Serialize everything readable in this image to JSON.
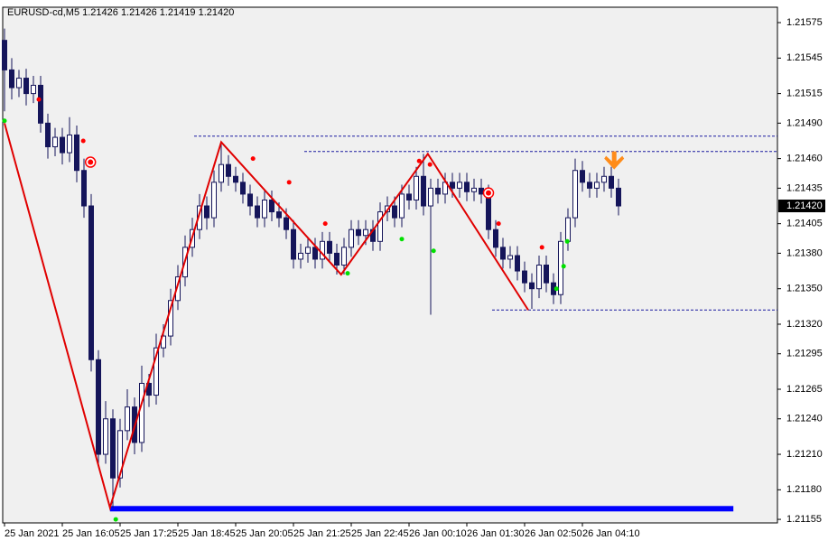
{
  "chart_data": {
    "type": "candlestick",
    "title": "EURUSD-cd,M5  1.21426 1.21426 1.21419 1.21420",
    "bull_color": "#ffffff",
    "bear_color": "#15155a",
    "outline_color": "#15155a",
    "ylim": [
      1.21152,
      1.21588
    ],
    "yticks": [
      1.21575,
      1.21545,
      1.21515,
      {
        "value": 1.2149,
        "label": "1.21490"
      },
      {
        "value": 1.2146,
        "label": "1.21460"
      },
      1.21435,
      1.21405,
      {
        "value": 1.2138,
        "label": "1.21380"
      },
      {
        "value": 1.2135,
        "label": "1.21350"
      },
      {
        "value": 1.2132,
        "label": "1.21320"
      },
      1.21295,
      1.21265,
      {
        "value": 1.2124,
        "label": "1.21240"
      },
      {
        "value": 1.2121,
        "label": "1.21210"
      },
      {
        "value": 1.2118,
        "label": "1.21180"
      },
      1.21155
    ],
    "xlim": [
      -0.25,
      107
    ],
    "xticks": [
      {
        "value": 0,
        "label": "25 Jan 2021"
      },
      {
        "value": 8,
        "label": "25 Jan 16:05"
      },
      {
        "value": 16,
        "label": "25 Jan 17:25"
      },
      {
        "value": 24,
        "label": "25 Jan 18:45"
      },
      {
        "value": 32,
        "label": "25 Jan 20:05"
      },
      {
        "value": 40,
        "label": "25 Jan 21:25"
      },
      {
        "value": 48,
        "label": "25 Jan 22:45"
      },
      {
        "value": 56,
        "label": "26 Jan 00:10"
      },
      {
        "value": 64,
        "label": "26 Jan 01:30"
      },
      {
        "value": 72,
        "label": "26 Jan 02:50"
      },
      {
        "value": 80,
        "label": "26 Jan 04:10"
      }
    ],
    "last_price": {
      "value": 1.2142,
      "label": "1.21420"
    },
    "ohlc": [
      [
        1.2156,
        1.2157,
        1.215,
        1.21535
      ],
      [
        1.21535,
        1.21545,
        1.2151,
        1.2152
      ],
      [
        1.2152,
        1.21535,
        1.21512,
        1.21528
      ],
      [
        1.21528,
        1.21536,
        1.21505,
        1.21515
      ],
      [
        1.21515,
        1.2153,
        1.21507,
        1.21522
      ],
      [
        1.21522,
        1.2153,
        1.21482,
        1.2149
      ],
      [
        1.2149,
        1.21498,
        1.2146,
        1.2147
      ],
      [
        1.2147,
        1.21486,
        1.21462,
        1.21478
      ],
      [
        1.21478,
        1.21486,
        1.21455,
        1.21465
      ],
      [
        1.21465,
        1.21495,
        1.21457,
        1.2148
      ],
      [
        1.2148,
        1.21488,
        1.2144,
        1.2145
      ],
      [
        1.2145,
        1.2146,
        1.2141,
        1.2142
      ],
      [
        1.2142,
        1.2143,
        1.2128,
        1.2129
      ],
      [
        1.2129,
        1.21298,
        1.212,
        1.2121
      ],
      [
        1.2121,
        1.21255,
        1.21202,
        1.2124
      ],
      [
        1.2124,
        1.21248,
        1.21165,
        1.2119
      ],
      [
        1.2119,
        1.2124,
        1.21182,
        1.2123
      ],
      [
        1.2123,
        1.21265,
        1.21222,
        1.2125
      ],
      [
        1.2125,
        1.21258,
        1.2121,
        1.2122
      ],
      [
        1.2122,
        1.21285,
        1.21212,
        1.2127
      ],
      [
        1.2127,
        1.21278,
        1.2125,
        1.2126
      ],
      [
        1.2126,
        1.21312,
        1.21252,
        1.213
      ],
      [
        1.213,
        1.2132,
        1.21292,
        1.2131
      ],
      [
        1.2131,
        1.2135,
        1.21302,
        1.2134
      ],
      [
        1.2134,
        1.2137,
        1.21332,
        1.2136
      ],
      [
        1.2136,
        1.21395,
        1.21352,
        1.21385
      ],
      [
        1.21385,
        1.2141,
        1.21377,
        1.214
      ],
      [
        1.214,
        1.2143,
        1.21392,
        1.2142
      ],
      [
        1.2142,
        1.21428,
        1.214,
        1.2141
      ],
      [
        1.2141,
        1.2145,
        1.21402,
        1.2144
      ],
      [
        1.2144,
        1.21474,
        1.21432,
        1.21455
      ],
      [
        1.21455,
        1.21463,
        1.21437,
        1.21445
      ],
      [
        1.21445,
        1.21453,
        1.21432,
        1.2144
      ],
      [
        1.2144,
        1.21448,
        1.21422,
        1.2143
      ],
      [
        1.2143,
        1.21438,
        1.21412,
        1.2142
      ],
      [
        1.2142,
        1.21428,
        1.21402,
        1.2141
      ],
      [
        1.2141,
        1.21433,
        1.21402,
        1.21425
      ],
      [
        1.21425,
        1.21433,
        1.21407,
        1.21415
      ],
      [
        1.21415,
        1.21423,
        1.21402,
        1.2141
      ],
      [
        1.2141,
        1.21418,
        1.21392,
        1.214
      ],
      [
        1.214,
        1.21408,
        1.21367,
        1.21375
      ],
      [
        1.21375,
        1.21388,
        1.21367,
        1.2138
      ],
      [
        1.2138,
        1.21393,
        1.21372,
        1.21385
      ],
      [
        1.21385,
        1.21393,
        1.21367,
        1.21375
      ],
      [
        1.21375,
        1.21398,
        1.21367,
        1.2139
      ],
      [
        1.2139,
        1.21398,
        1.21372,
        1.2138
      ],
      [
        1.2138,
        1.21388,
        1.21362,
        1.2137
      ],
      [
        1.2137,
        1.21393,
        1.21362,
        1.21385
      ],
      [
        1.21385,
        1.21408,
        1.21377,
        1.214
      ],
      [
        1.214,
        1.21408,
        1.21387,
        1.21395
      ],
      [
        1.21395,
        1.21408,
        1.21387,
        1.214
      ],
      [
        1.214,
        1.21408,
        1.21382,
        1.2139
      ],
      [
        1.2139,
        1.21423,
        1.21382,
        1.21415
      ],
      [
        1.21415,
        1.21428,
        1.21407,
        1.2142
      ],
      [
        1.2142,
        1.21428,
        1.21402,
        1.2141
      ],
      [
        1.2141,
        1.21438,
        1.21402,
        1.2143
      ],
      [
        1.2143,
        1.21438,
        1.21417,
        1.21425
      ],
      [
        1.21425,
        1.21453,
        1.21417,
        1.21445
      ],
      [
        1.21445,
        1.21464,
        1.21412,
        1.2142
      ],
      [
        1.2142,
        1.21443,
        1.21328,
        1.21435
      ],
      [
        1.21435,
        1.21443,
        1.21422,
        1.2143
      ],
      [
        1.2143,
        1.21448,
        1.21422,
        1.2144
      ],
      [
        1.2144,
        1.21448,
        1.21427,
        1.21435
      ],
      [
        1.21435,
        1.21448,
        1.21427,
        1.2144
      ],
      [
        1.2144,
        1.21448,
        1.21424,
        1.21432
      ],
      [
        1.21432,
        1.21443,
        1.21424,
        1.21435
      ],
      [
        1.21435,
        1.21443,
        1.21422,
        1.2143
      ],
      [
        1.2143,
        1.21438,
        1.21392,
        1.214
      ],
      [
        1.214,
        1.21408,
        1.21377,
        1.21385
      ],
      [
        1.21385,
        1.21393,
        1.21367,
        1.21375
      ],
      [
        1.21375,
        1.21386,
        1.21367,
        1.21378
      ],
      [
        1.21378,
        1.21386,
        1.21357,
        1.21365
      ],
      [
        1.21365,
        1.21373,
        1.21347,
        1.21355
      ],
      [
        1.21355,
        1.21363,
        1.21333,
        1.2135
      ],
      [
        1.2135,
        1.21378,
        1.21342,
        1.2137
      ],
      [
        1.2137,
        1.21378,
        1.21347,
        1.21355
      ],
      [
        1.21355,
        1.21363,
        1.21337,
        1.21345
      ],
      [
        1.21345,
        1.21398,
        1.21337,
        1.2139
      ],
      [
        1.2139,
        1.21418,
        1.21382,
        1.2141
      ],
      [
        1.2141,
        1.2146,
        1.21402,
        1.2145
      ],
      [
        1.2145,
        1.21458,
        1.21432,
        1.2144
      ],
      [
        1.2144,
        1.21448,
        1.21427,
        1.21435
      ],
      [
        1.21435,
        1.21448,
        1.21427,
        1.2144
      ],
      [
        1.2144,
        1.21453,
        1.21432,
        1.21445
      ],
      [
        1.21445,
        1.21453,
        1.21427,
        1.21435
      ],
      [
        1.21435,
        1.21443,
        1.21412,
        1.2142
      ]
    ],
    "zigzag": {
      "x": [
        0,
        14.6,
        30,
        46.6,
        58.6,
        72.5
      ],
      "y": [
        1.2149,
        1.21165,
        1.21474,
        1.21362,
        1.21464,
        1.21332
      ],
      "color": "#e00000"
    },
    "levels": [
      {
        "value": 1.21479,
        "from": 26.25
      },
      {
        "value": 1.21466,
        "from": 41.5
      },
      {
        "value": 1.21332,
        "from": 67.5
      }
    ],
    "level_color": "#1a1aa0",
    "red_dots": {
      "x": [
        4.75,
        10.9,
        34.4,
        39.4,
        44.4,
        57.4,
        58.9,
        68.4,
        74.4
      ],
      "y": [
        1.2151,
        1.21475,
        1.2146,
        1.2144,
        1.21405,
        1.21458,
        1.21455,
        1.21405,
        1.21385
      ],
      "color": "#ff0000"
    },
    "green_dots": {
      "x": [
        0,
        15.4,
        47.5,
        55,
        59.4,
        76.4,
        77.4,
        77.9
      ],
      "y": [
        1.21492,
        1.21155,
        1.21363,
        1.21392,
        1.21382,
        1.2135,
        1.21369,
        1.2139
      ],
      "color": "#00e000"
    },
    "targets": {
      "x": [
        11.9,
        67
      ],
      "y": [
        1.21457,
        1.21431
      ],
      "color": "#ff0000"
    },
    "arrow": {
      "x": 84.4,
      "y": 1.2146,
      "color": "#ff8c1a"
    },
    "support_bar": {
      "x": [
        14.6,
        100.9
      ],
      "y": 1.21164,
      "color": "#0000ff"
    }
  }
}
